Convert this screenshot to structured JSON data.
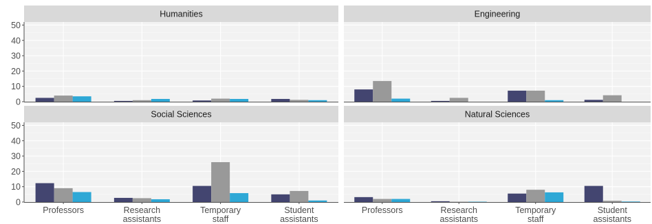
{
  "chart_data": {
    "type": "bar",
    "categories": [
      "Professors",
      "Research\nassistants",
      "Temporary\nstaff",
      "Student\nassistants"
    ],
    "ylim": [
      0,
      52
    ],
    "yticks": [
      0,
      10,
      20,
      30,
      40,
      50
    ],
    "ytick_labels": [
      "0",
      "10",
      "20",
      "30",
      "40",
      "50"
    ],
    "grid": true,
    "legend": "none",
    "series_colors": [
      "#434570",
      "#999999",
      "#2EA8D6"
    ],
    "panels": [
      {
        "title": "Humanities",
        "values": [
          [
            2.5,
            4.0,
            3.5
          ],
          [
            0.5,
            1.0,
            1.8
          ],
          [
            0.8,
            2.0,
            1.8
          ],
          [
            1.8,
            1.2,
            1.0
          ]
        ]
      },
      {
        "title": "Engineering",
        "values": [
          [
            8.0,
            13.5,
            2.0
          ],
          [
            0.5,
            2.5,
            0.0
          ],
          [
            7.2,
            7.2,
            1.0
          ],
          [
            1.2,
            4.2,
            0.0
          ]
        ]
      },
      {
        "title": "Social Sciences",
        "values": [
          [
            12.3,
            9.0,
            6.5
          ],
          [
            2.7,
            2.5,
            1.8
          ],
          [
            10.5,
            26.0,
            5.8
          ],
          [
            5.0,
            7.2,
            1.0
          ]
        ]
      },
      {
        "title": "Natural Sciences",
        "values": [
          [
            3.2,
            2.0,
            2.0
          ],
          [
            0.5,
            0.2,
            0.2
          ],
          [
            5.5,
            8.0,
            6.3
          ],
          [
            10.5,
            0.8,
            0.3
          ]
        ]
      }
    ]
  }
}
